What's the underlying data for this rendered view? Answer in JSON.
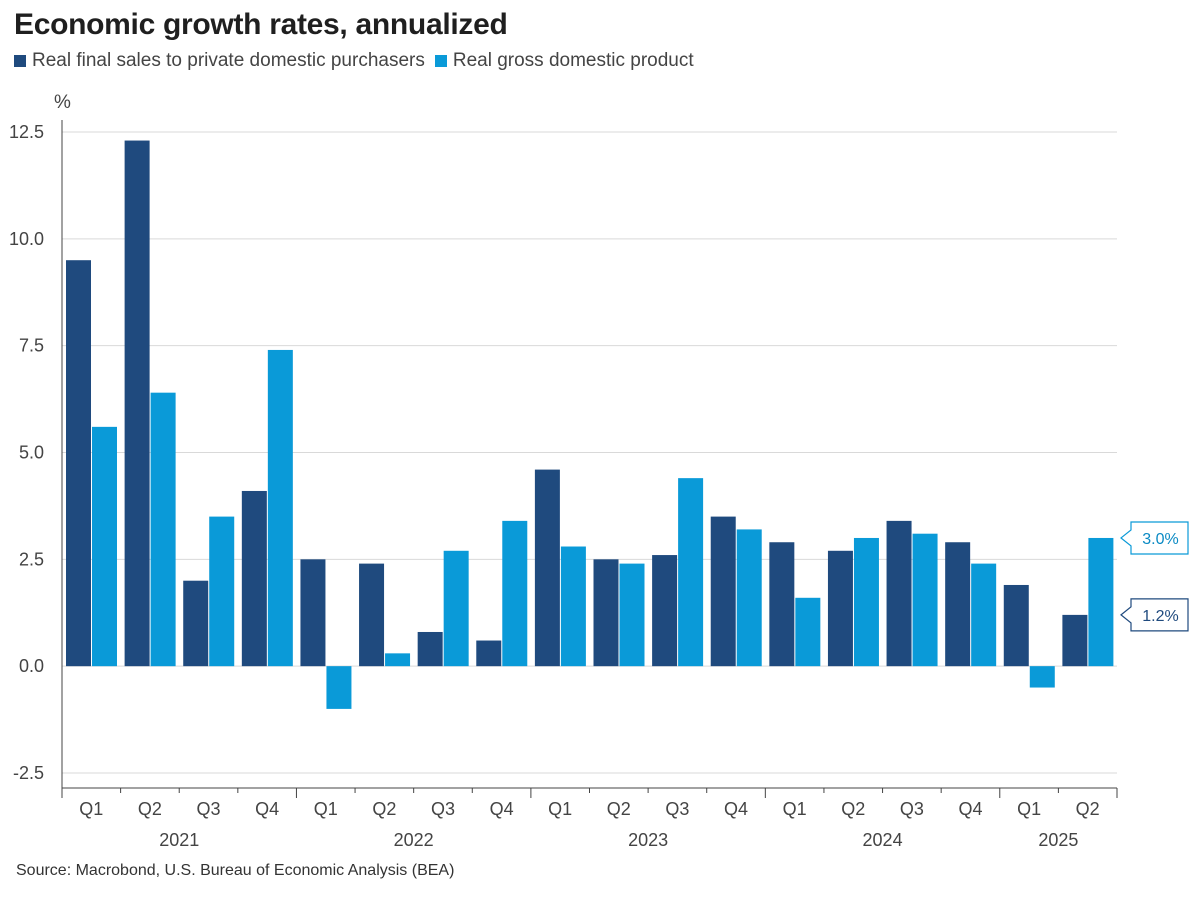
{
  "title": "Economic growth rates, annualized",
  "source": "Source: Macrobond, U.S. Bureau of Economic Analysis (BEA)",
  "colors": {
    "dark": "#1f4a7e",
    "light": "#0a9ad8",
    "grid": "#d9d9d9",
    "axis": "#444444"
  },
  "chart_data": {
    "type": "bar",
    "ylabel": "%",
    "ylim": [
      -2.5,
      12.5
    ],
    "yticks": [
      12.5,
      10.0,
      7.5,
      5.0,
      2.5,
      0.0,
      -2.5
    ],
    "ytick_labels": [
      "12.5",
      "10.0",
      "7.5",
      "5.0",
      "2.5",
      "0.0",
      "-2.5"
    ],
    "categories": [
      "Q1",
      "Q2",
      "Q3",
      "Q4",
      "Q1",
      "Q2",
      "Q3",
      "Q4",
      "Q1",
      "Q2",
      "Q3",
      "Q4",
      "Q1",
      "Q2",
      "Q3",
      "Q4",
      "Q1",
      "Q2"
    ],
    "years": [
      {
        "label": "2021",
        "start": 0,
        "end": 3
      },
      {
        "label": "2022",
        "start": 4,
        "end": 7
      },
      {
        "label": "2023",
        "start": 8,
        "end": 11
      },
      {
        "label": "2024",
        "start": 12,
        "end": 15
      },
      {
        "label": "2025",
        "start": 16,
        "end": 17
      }
    ],
    "series": [
      {
        "name": "Real final sales to private domestic purchasers",
        "color": "#1f4a7e",
        "values": [
          9.5,
          12.3,
          2.0,
          4.1,
          2.5,
          2.4,
          0.8,
          0.6,
          4.6,
          2.5,
          2.6,
          3.5,
          2.9,
          2.7,
          3.4,
          2.9,
          1.9,
          1.2
        ]
      },
      {
        "name": "Real gross domestic product",
        "color": "#0a9ad8",
        "values": [
          5.6,
          6.4,
          3.5,
          7.4,
          -1.0,
          0.3,
          2.7,
          3.4,
          2.8,
          2.4,
          4.4,
          3.2,
          1.6,
          3.0,
          3.1,
          2.4,
          -0.5,
          3.0
        ]
      }
    ],
    "annotations": [
      {
        "series": 1,
        "label": "3.0%"
      },
      {
        "series": 0,
        "label": "1.2%"
      }
    ]
  }
}
